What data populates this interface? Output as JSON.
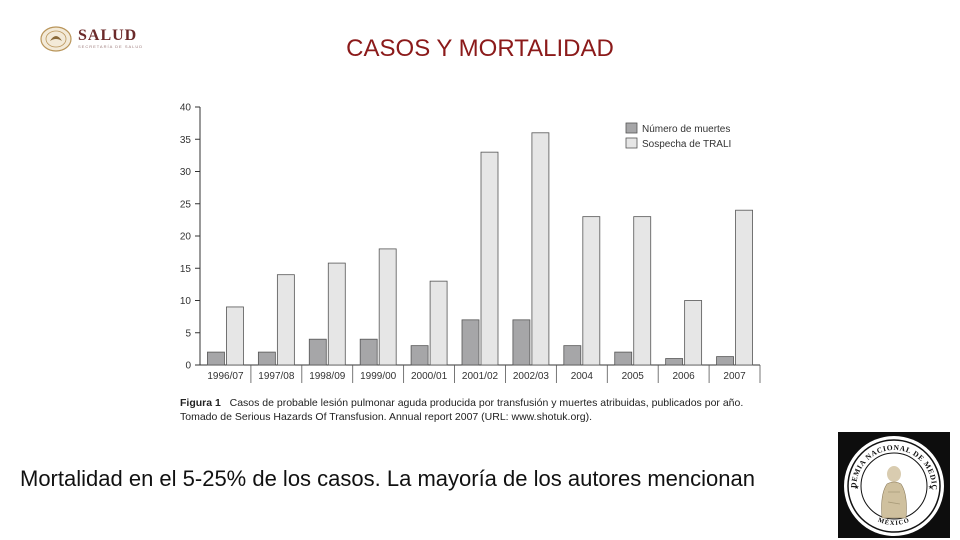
{
  "header": {
    "logo_text": "SALUD",
    "logo_subtext": "SECRETARÍA DE SALUD",
    "title": "CASOS Y MORTALIDAD"
  },
  "chart_data": {
    "type": "bar",
    "categories": [
      "1996/07",
      "1997/08",
      "1998/09",
      "1999/00",
      "2000/01",
      "2001/02",
      "2002/03",
      "2004",
      "2005",
      "2006",
      "2007"
    ],
    "series": [
      {
        "name": "Número de muertes",
        "values": [
          2,
          2,
          4,
          4,
          3,
          7,
          7,
          3,
          2,
          1,
          1.3
        ],
        "color": "#a6a6a8"
      },
      {
        "name": "Sospecha de TRALI",
        "values": [
          9,
          14,
          15.8,
          18,
          13,
          33,
          36,
          23,
          23,
          10,
          24
        ],
        "color": "#e6e6e6"
      }
    ],
    "yticks": [
      0,
      5,
      10,
      15,
      20,
      25,
      30,
      35,
      40
    ],
    "ylim": [
      0,
      40
    ],
    "legend": "top-right",
    "grid": false
  },
  "figure": {
    "caption_label": "Figura 1",
    "caption_text": "Casos de probable lesión pulmonar aguda producida por transfusión y muertes atribuidas, publicados por año. Tomado de Serious Hazards Of Transfusion. Annual report 2007 (URL: www.shotuk.org)."
  },
  "body": {
    "statement": "Mortalidad en el 5-25% de los casos. La mayoría de los autores mencionan"
  },
  "seal": {
    "text_top": "ACADEMIA NACIONAL DE MEDICINA",
    "text_bottom": "MÉXICO"
  }
}
